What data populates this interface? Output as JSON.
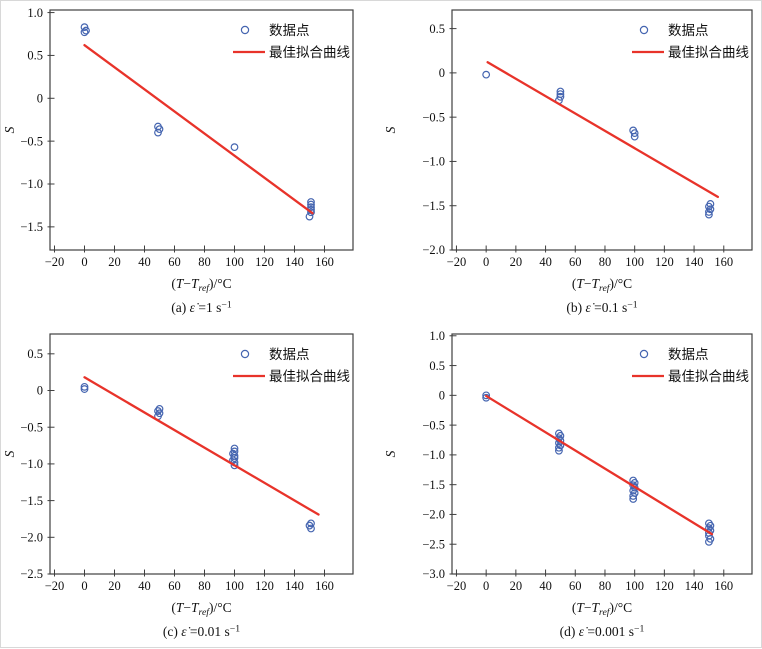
{
  "figure": {
    "background": "#ffffff",
    "ylabel": "S",
    "xlabel": {
      "text": "(T−Tref)/°C",
      "parts": [
        {
          "t": "("
        },
        {
          "t": "T",
          "i": 1
        },
        {
          "t": "−"
        },
        {
          "t": "T",
          "i": 1
        },
        {
          "t": "ref",
          "i": 1,
          "sub": 1
        },
        {
          "t": ")/"
        },
        {
          "t": "°C"
        }
      ]
    },
    "legend": {
      "point_label": "数据点",
      "line_label": "最佳拟合曲线",
      "position": "top-right",
      "frame": false
    },
    "colors": {
      "point_stroke": "#4565b0",
      "fit_line": "#e8332a",
      "axis": "#3f3f3f",
      "text": "#111111"
    },
    "xticks": [
      "−20",
      "0",
      "20",
      "40",
      "60",
      "80",
      "100",
      "120",
      "140",
      "160"
    ],
    "xtick_values": [
      -20,
      0,
      20,
      40,
      60,
      80,
      100,
      120,
      140,
      160
    ]
  },
  "chart_data": [
    {
      "id": "a",
      "type": "scatter",
      "caption": {
        "text": "(a) ε̇ =1 s⁻¹",
        "parts": [
          {
            "t": "(a) "
          },
          {
            "t": "ε̇",
            "i": 1
          },
          {
            "t": " =1 s"
          },
          {
            "t": "−1",
            "sup": 1
          }
        ]
      },
      "xlim": [
        -23,
        179
      ],
      "ylim": [
        -1.77,
        1.03
      ],
      "yticks": [
        {
          "v": 1.0,
          "l": "1.0"
        },
        {
          "v": 0.5,
          "l": "0.5"
        },
        {
          "v": 0,
          "l": "0"
        },
        {
          "v": -0.5,
          "l": "−0.5"
        },
        {
          "v": -1.0,
          "l": "−1.0"
        },
        {
          "v": -1.5,
          "l": "−1.5"
        }
      ],
      "points": [
        [
          0,
          0.83
        ],
        [
          1,
          0.79
        ],
        [
          0,
          0.77
        ],
        [
          49,
          -0.33
        ],
        [
          50,
          -0.36
        ],
        [
          49,
          -0.4
        ],
        [
          100,
          -0.57
        ],
        [
          151,
          -1.21
        ],
        [
          151,
          -1.24
        ],
        [
          151,
          -1.27
        ],
        [
          151,
          -1.3
        ],
        [
          151,
          -1.33
        ],
        [
          150,
          -1.38
        ]
      ],
      "fit_line": {
        "x1": 0,
        "y1": 0.62,
        "x2": 152,
        "y2": -1.34
      }
    },
    {
      "id": "b",
      "type": "scatter",
      "caption": {
        "text": "(b) ε̇ =0.1 s⁻¹",
        "parts": [
          {
            "t": "(b) "
          },
          {
            "t": "ε̇",
            "i": 1
          },
          {
            "t": " =0.1 s"
          },
          {
            "t": "−1",
            "sup": 1
          }
        ]
      },
      "xlim": [
        -23,
        179
      ],
      "ylim": [
        -2.0,
        0.71
      ],
      "yticks": [
        {
          "v": 0.5,
          "l": "0.5"
        },
        {
          "v": 0,
          "l": "0"
        },
        {
          "v": -0.5,
          "l": "−0.5"
        },
        {
          "v": -1.0,
          "l": "−1.0"
        },
        {
          "v": -1.5,
          "l": "−1.5"
        },
        {
          "v": -2.0,
          "l": "−2.0"
        }
      ],
      "points": [
        [
          0,
          -0.02
        ],
        [
          50,
          -0.21
        ],
        [
          50,
          -0.24
        ],
        [
          50,
          -0.27
        ],
        [
          49,
          -0.31
        ],
        [
          99,
          -0.65
        ],
        [
          100,
          -0.68
        ],
        [
          100,
          -0.72
        ],
        [
          151,
          -1.48
        ],
        [
          150,
          -1.51
        ],
        [
          151,
          -1.54
        ],
        [
          150,
          -1.57
        ],
        [
          150,
          -1.6
        ]
      ],
      "fit_line": {
        "x1": 1,
        "y1": 0.12,
        "x2": 156,
        "y2": -1.4
      }
    },
    {
      "id": "c",
      "type": "scatter",
      "caption": {
        "text": "(c) ε̇ =0.01 s⁻¹",
        "parts": [
          {
            "t": "(c) "
          },
          {
            "t": "ε̇",
            "i": 1
          },
          {
            "t": " =0.01 s"
          },
          {
            "t": "−1",
            "sup": 1
          }
        ]
      },
      "xlim": [
        -23,
        179
      ],
      "ylim": [
        -2.5,
        0.77
      ],
      "yticks": [
        {
          "v": 0.5,
          "l": "0.5"
        },
        {
          "v": 0,
          "l": "0"
        },
        {
          "v": -0.5,
          "l": "−0.5"
        },
        {
          "v": -1.0,
          "l": "−1.0"
        },
        {
          "v": -1.5,
          "l": "−1.5"
        },
        {
          "v": -2.0,
          "l": "−2.0"
        },
        {
          "v": -2.5,
          "l": "−2.5"
        }
      ],
      "points": [
        [
          0,
          0.05
        ],
        [
          0,
          0.02
        ],
        [
          50,
          -0.25
        ],
        [
          49,
          -0.28
        ],
        [
          50,
          -0.31
        ],
        [
          49,
          -0.35
        ],
        [
          100,
          -0.79
        ],
        [
          100,
          -0.83
        ],
        [
          99,
          -0.86
        ],
        [
          100,
          -0.89
        ],
        [
          100,
          -0.92
        ],
        [
          99,
          -0.95
        ],
        [
          100,
          -0.98
        ],
        [
          100,
          -1.02
        ],
        [
          151,
          -1.81
        ],
        [
          150,
          -1.84
        ],
        [
          151,
          -1.88
        ]
      ],
      "fit_line": {
        "x1": 0,
        "y1": 0.18,
        "x2": 156,
        "y2": -1.69
      }
    },
    {
      "id": "d",
      "type": "scatter",
      "caption": {
        "text": "(d) ε̇ =0.001 s⁻¹",
        "parts": [
          {
            "t": "(d) "
          },
          {
            "t": "ε̇",
            "i": 1
          },
          {
            "t": " =0.001 s"
          },
          {
            "t": "−1",
            "sup": 1
          }
        ]
      },
      "xlim": [
        -23,
        179
      ],
      "ylim": [
        -3.0,
        1.03
      ],
      "yticks": [
        {
          "v": 1.0,
          "l": "1.0"
        },
        {
          "v": 0.5,
          "l": "0.5"
        },
        {
          "v": 0,
          "l": "0"
        },
        {
          "v": -0.5,
          "l": "−0.5"
        },
        {
          "v": -1.0,
          "l": "−1.0"
        },
        {
          "v": -1.5,
          "l": "−1.5"
        },
        {
          "v": -2.0,
          "l": "−2.0"
        },
        {
          "v": -2.5,
          "l": "−2.5"
        },
        {
          "v": -3.0,
          "l": "−3.0"
        }
      ],
      "points": [
        [
          0,
          0.0
        ],
        [
          0,
          -0.04
        ],
        [
          49,
          -0.64
        ],
        [
          50,
          -0.68
        ],
        [
          49,
          -0.72
        ],
        [
          50,
          -0.76
        ],
        [
          49,
          -0.8
        ],
        [
          50,
          -0.84
        ],
        [
          49,
          -0.88
        ],
        [
          49,
          -0.93
        ],
        [
          99,
          -1.43
        ],
        [
          100,
          -1.47
        ],
        [
          99,
          -1.51
        ],
        [
          100,
          -1.55
        ],
        [
          99,
          -1.6
        ],
        [
          100,
          -1.64
        ],
        [
          99,
          -1.69
        ],
        [
          99,
          -1.74
        ],
        [
          150,
          -2.15
        ],
        [
          151,
          -2.19
        ],
        [
          150,
          -2.23
        ],
        [
          151,
          -2.27
        ],
        [
          150,
          -2.31
        ],
        [
          150,
          -2.36
        ],
        [
          151,
          -2.41
        ],
        [
          150,
          -2.46
        ]
      ],
      "fit_line": {
        "x1": 0,
        "y1": -0.01,
        "x2": 152,
        "y2": -2.33
      }
    }
  ]
}
